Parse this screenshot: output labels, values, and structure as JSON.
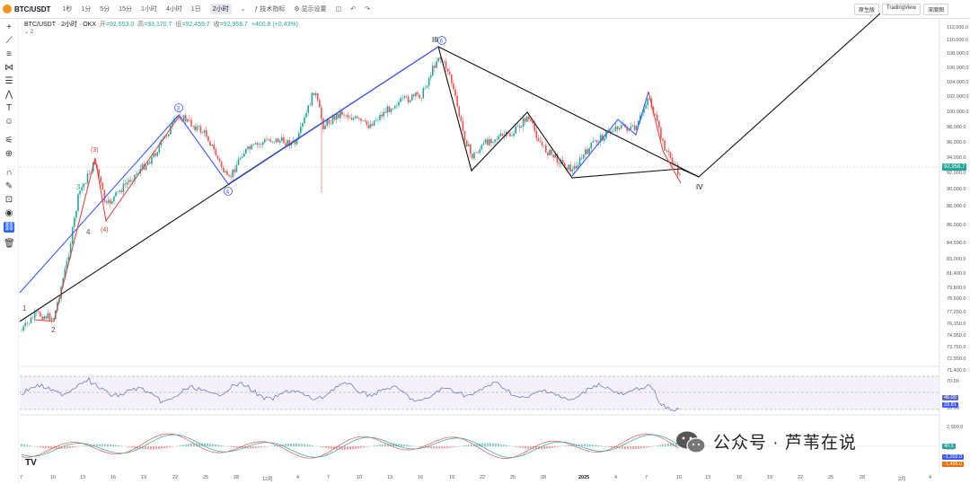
{
  "header": {
    "symbol": "BTC/USDT",
    "timeframes": [
      "1秒",
      "1分",
      "5分",
      "15分",
      "1小时",
      "4小时",
      "1日"
    ],
    "selected_timeframe": "2小时",
    "indicators_label": "技术指标",
    "display_settings_label": "显示设置",
    "mode_buttons": [
      "原生版",
      "TradingView",
      "深度图"
    ]
  },
  "legend": {
    "title": "BTC/USDT · 2小时 · OKX",
    "open_label": "开",
    "open": "=92,553.0",
    "high_label": "高",
    "high": "=93,170.7",
    "low_label": "低",
    "low": "=92,459.7",
    "close_label": "收",
    "close": "=92,958.7",
    "change": "+400.8 (+0.43%)",
    "collapse": "⌄ 2"
  },
  "price_axis": [
    "112,000.0",
    "110,000.0",
    "108,000.0",
    "106,000.0",
    "104,000.0",
    "102,000.0",
    "100,000.0",
    "98,000.0",
    "96,000.0",
    "94,000.0",
    "92,000.0",
    "90,000.0",
    "88,000.0",
    "86,000.0",
    "84,500.0",
    "83,000.0",
    "81,400.0",
    "79,800.0",
    "78,600.0",
    "77,250.0",
    "76,150.0",
    "74,950.0",
    "73,750.0",
    "72,550.0",
    "71,400.0"
  ],
  "current_price": "92,958.7",
  "rsi_axis": [
    "70.00",
    "30.00"
  ],
  "rsi_tags": [
    "46.00",
    "33.81"
  ],
  "macd_axis": [
    "2,000.0",
    "0.0"
  ],
  "macd_tags": [
    "40.5",
    "-1,202.0",
    "-1,466.0"
  ],
  "time_axis": [
    "7",
    "10",
    "13",
    "16",
    "19",
    "22",
    "25",
    "28",
    "12月",
    "4",
    "7",
    "10",
    "13",
    "16",
    "19",
    "22",
    "25",
    "28",
    "2025",
    "4",
    "7",
    "10",
    "13",
    "16",
    "19",
    "22",
    "25",
    "28",
    "2月",
    "4"
  ],
  "wave_labels": {
    "one": "1",
    "two": "2",
    "three": "3",
    "four": "4",
    "c_three": "(3)",
    "c_four": "(4)",
    "circle_three": "3",
    "circle_four": "4",
    "circle_five": "5",
    "circle_six": "6",
    "roman_three": "III",
    "roman_four": "IV"
  },
  "watermark": "公众号 · 芦苇在说",
  "tv_logo": "TV",
  "colors": {
    "up": "#26a69a",
    "down": "#ef5350",
    "wave_black": "#111111",
    "wave_blue": "#3d5afe",
    "wave_red": "#e53935",
    "rsi_line": "#5c6bc0",
    "rsi_band": "#ede7f6"
  }
}
